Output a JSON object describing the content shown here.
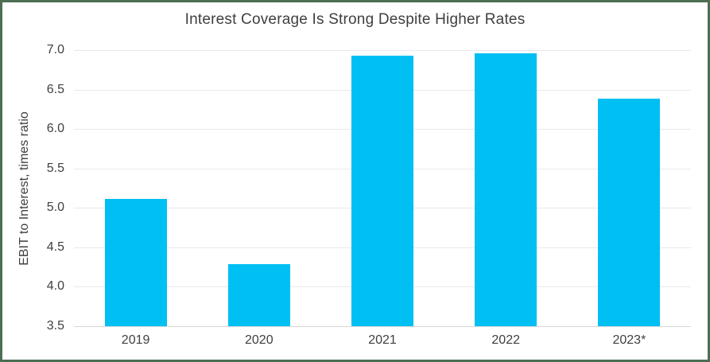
{
  "colors": {
    "frame_border": "#4e6e52",
    "bar_fill": "#00bff3",
    "gridline": "#e9e9e9",
    "axis_baseline": "#d7d7d7",
    "text": "#3f3f3f",
    "background": "#ffffff"
  },
  "chart_data": {
    "type": "bar",
    "title": "Interest Coverage Is Strong Despite Higher Rates",
    "xlabel": "",
    "ylabel": "EBIT to Interest, times ratio",
    "categories": [
      "2019",
      "2020",
      "2021",
      "2022",
      "2023*"
    ],
    "values": [
      5.11,
      4.29,
      6.93,
      6.96,
      6.38
    ],
    "ylim": [
      3.5,
      7.0
    ],
    "yticks": [
      3.5,
      4.0,
      4.5,
      5.0,
      5.5,
      6.0,
      6.5,
      7.0
    ],
    "ytick_decimals": 1,
    "grid": true,
    "legend": "none",
    "bar_color": "#00bff3",
    "series_name": "EBIT to Interest ratio"
  }
}
